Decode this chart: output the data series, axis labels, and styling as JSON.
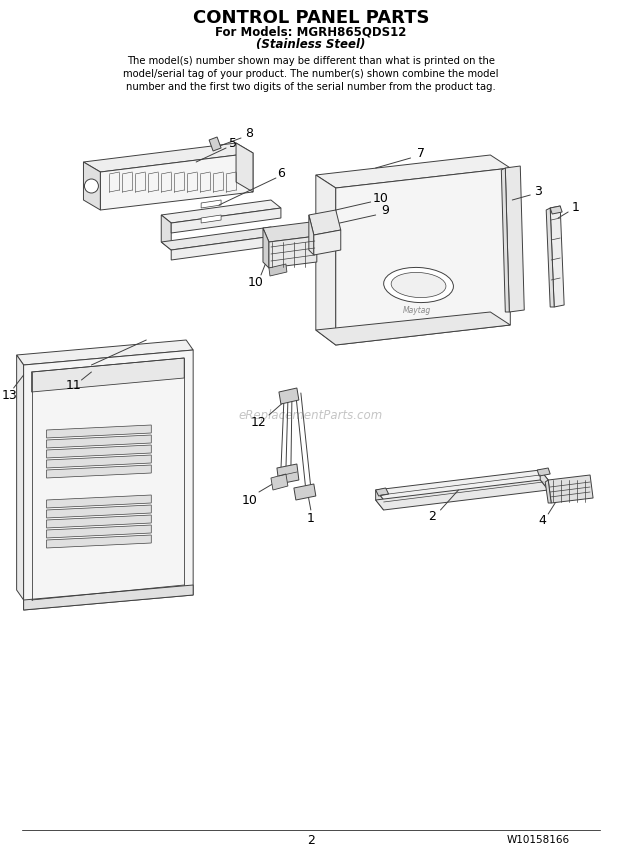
{
  "title": "CONTROL PANEL PARTS",
  "subtitle1": "For Models: MGRH865QDS12",
  "subtitle2": "(Stainless Steel)",
  "body_text": "The model(s) number shown may be different than what is printed on the\nmodel/serial tag of your product. The number(s) shown combine the model\nnumber and the first two digits of the serial number from the product tag.",
  "page_number": "2",
  "doc_number": "W10158166",
  "watermark": "eReplacementParts.com",
  "bg_color": "#ffffff",
  "line_color": "#404040",
  "title_fontsize": 13,
  "subtitle_fontsize": 8.5,
  "body_fontsize": 7.2,
  "label_fontsize": 9
}
